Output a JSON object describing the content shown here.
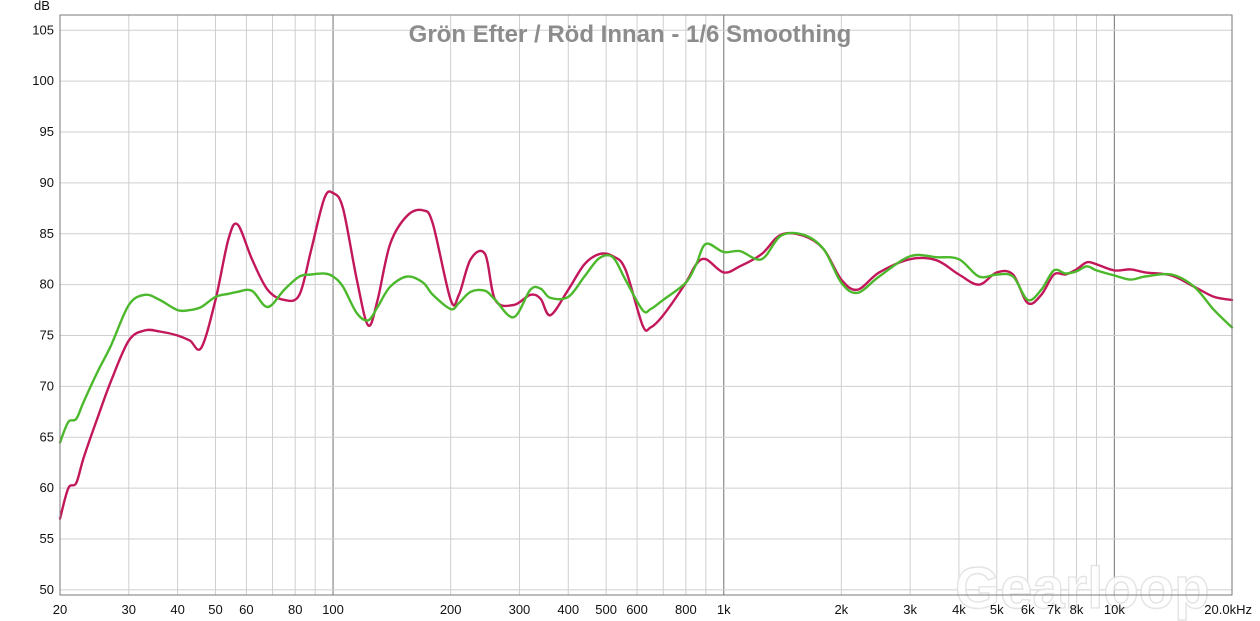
{
  "chart_data": {
    "type": "line",
    "title": "Grön Efter / Röd Innan - 1/6 Smoothing",
    "ylabel": "dB",
    "xlabel": "",
    "x_scale": "log",
    "xlim": [
      20,
      20000
    ],
    "ylim": [
      49.5,
      106.5
    ],
    "grid": true,
    "y_ticks": [
      50,
      55,
      60,
      65,
      70,
      75,
      80,
      85,
      90,
      95,
      100,
      105
    ],
    "y_tick_labels": [
      "50",
      "55",
      "60",
      "65",
      "70",
      "75",
      "80",
      "85",
      "90",
      "95",
      "100",
      "105"
    ],
    "x_tick_values": [
      20,
      30,
      40,
      50,
      60,
      80,
      100,
      200,
      300,
      400,
      500,
      600,
      800,
      1000,
      2000,
      3000,
      4000,
      5000,
      6000,
      7000,
      8000,
      10000,
      20000
    ],
    "x_tick_labels": [
      "20",
      "30",
      "40",
      "50",
      "60",
      "80",
      "100",
      "200",
      "300",
      "400",
      "500",
      "600",
      "800",
      "1k",
      "2k",
      "3k",
      "4k",
      "5k",
      "6k",
      "7k",
      "8k",
      "10k",
      "20.0kHz"
    ],
    "watermark": "Gearloop",
    "series": [
      {
        "color": "#c2185b",
        "x": [
          20,
          21,
          22,
          23,
          25,
          27,
          30,
          33,
          36,
          40,
          43,
          46,
          50,
          54,
          57,
          62,
          68,
          75,
          82,
          88,
          95,
          100,
          106,
          115,
          123,
          130,
          140,
          155,
          170,
          180,
          200,
          210,
          225,
          245,
          260,
          290,
          320,
          340,
          360,
          400,
          440,
          480,
          520,
          560,
          620,
          650,
          700,
          800,
          850,
          900,
          1000,
          1100,
          1250,
          1400,
          1600,
          1800,
          2000,
          2200,
          2500,
          3000,
          3500,
          4000,
          4500,
          5000,
          5500,
          6000,
          6500,
          7000,
          7500,
          8000,
          8500,
          9000,
          10000,
          11000,
          12000,
          14000,
          16000,
          18000,
          20000
        ],
        "y": [
          57,
          60,
          60.5,
          63,
          67,
          70.5,
          74.5,
          75.5,
          75.4,
          75,
          74.5,
          73.8,
          78.5,
          84.5,
          85.9,
          82.5,
          79.5,
          78.5,
          79,
          83.5,
          88.5,
          89,
          87.5,
          80.5,
          76,
          78.5,
          84,
          86.8,
          87.3,
          86,
          78.5,
          79,
          82.5,
          83,
          78.5,
          78,
          79,
          78.6,
          77,
          79.5,
          82,
          83,
          82.8,
          81.5,
          76,
          75.8,
          77,
          80.2,
          82,
          82.5,
          81.2,
          81.8,
          83,
          84.9,
          84.8,
          83.5,
          80.5,
          79.5,
          81.2,
          82.5,
          82.4,
          81,
          80,
          81.2,
          81,
          78.2,
          79,
          81,
          81,
          81.5,
          82.2,
          82,
          81.4,
          81.5,
          81.2,
          80.9,
          79.8,
          78.8,
          78.5
        ]
      },
      {
        "color": "#4cb82c",
        "x": [
          20,
          21,
          22,
          23,
          25,
          27,
          30,
          33,
          36,
          40,
          43,
          46,
          50,
          54,
          57,
          62,
          68,
          75,
          82,
          88,
          95,
          100,
          106,
          115,
          123,
          130,
          140,
          155,
          170,
          180,
          200,
          210,
          225,
          245,
          260,
          290,
          320,
          340,
          360,
          400,
          440,
          480,
          520,
          560,
          620,
          650,
          700,
          800,
          850,
          900,
          1000,
          1100,
          1250,
          1400,
          1600,
          1800,
          2000,
          2200,
          2500,
          3000,
          3500,
          4000,
          4500,
          5000,
          5500,
          6000,
          6500,
          7000,
          7500,
          8000,
          8500,
          9000,
          10000,
          11000,
          12000,
          14000,
          16000,
          18000,
          20000
        ],
        "y": [
          64.5,
          66.5,
          66.8,
          68.5,
          71.5,
          74,
          78,
          79,
          78.5,
          77.5,
          77.5,
          77.8,
          78.8,
          79.1,
          79.3,
          79.4,
          77.8,
          79.5,
          80.8,
          81,
          81.1,
          80.8,
          79.8,
          77.2,
          76.5,
          77.8,
          79.8,
          80.8,
          80.2,
          79,
          77.6,
          78.2,
          79.3,
          79.4,
          78.5,
          76.8,
          79.5,
          79.6,
          78.7,
          78.8,
          80.8,
          82.6,
          82.7,
          80.5,
          77.5,
          77.6,
          78.5,
          80.2,
          82,
          84,
          83.2,
          83.3,
          82.5,
          84.8,
          84.9,
          83.5,
          80.2,
          79.2,
          80.8,
          82.8,
          82.7,
          82.5,
          80.8,
          81,
          80.8,
          78.5,
          79.5,
          81.4,
          81.1,
          81.3,
          81.8,
          81.4,
          80.9,
          80.5,
          80.8,
          81,
          79.8,
          77.5,
          75.8
        ]
      }
    ]
  }
}
